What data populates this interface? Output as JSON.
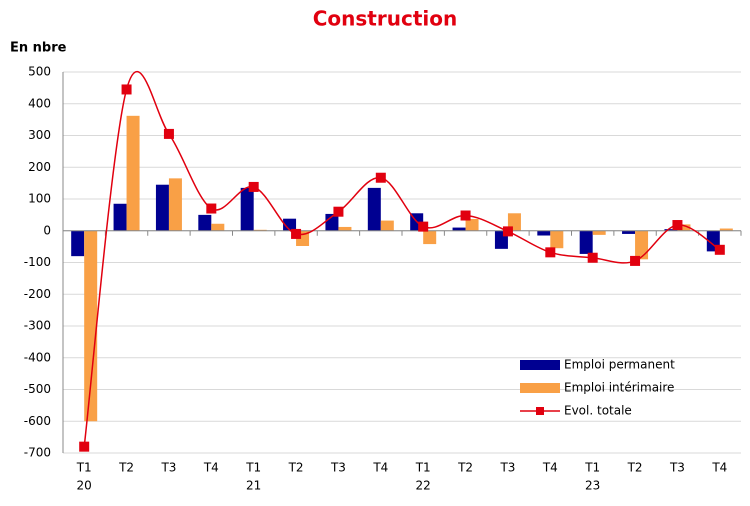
{
  "chart_data": {
    "type": "bar-line",
    "title": "Construction",
    "y_label": "En nbre",
    "categories": [
      "T1",
      "T2",
      "T3",
      "T4",
      "T1",
      "T2",
      "T3",
      "T4",
      "T1",
      "T2",
      "T3",
      "T4",
      "T1",
      "T2",
      "T3",
      "T4"
    ],
    "years": [
      "20",
      null,
      null,
      null,
      "21",
      null,
      null,
      null,
      "22",
      null,
      null,
      null,
      "23",
      null,
      null,
      null
    ],
    "series": [
      {
        "name": "Emploi permanent",
        "type": "bar",
        "color": "#000091",
        "values": [
          -80,
          85,
          145,
          50,
          135,
          38,
          53,
          135,
          55,
          10,
          -57,
          -15,
          -73,
          -10,
          5,
          -65
        ]
      },
      {
        "name": "Emploi intérimaire",
        "type": "bar",
        "color": "#f9a046",
        "values": [
          -600,
          362,
          165,
          22,
          3,
          -48,
          12,
          32,
          -42,
          37,
          55,
          -55,
          -13,
          -90,
          20,
          7
        ]
      },
      {
        "name": "Evol. totale",
        "type": "line",
        "color": "#e1000f",
        "values": [
          -680,
          445,
          305,
          70,
          138,
          -10,
          60,
          167,
          13,
          48,
          -2,
          -68,
          -85,
          -95,
          18,
          -60
        ]
      }
    ],
    "ylim": [
      -700,
      500
    ],
    "yticks": [
      -700,
      -600,
      -500,
      -400,
      -300,
      -200,
      -100,
      0,
      100,
      200,
      300,
      400,
      500
    ],
    "grid": true,
    "legend": "bottom-right"
  }
}
